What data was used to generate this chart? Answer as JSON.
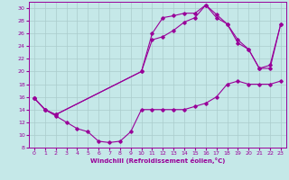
{
  "xlabel": "Windchill (Refroidissement éolien,°C)",
  "bg_color": "#c5e8e8",
  "line_color": "#990099",
  "grid_color": "#aacccc",
  "xlim": [
    -0.5,
    23.5
  ],
  "ylim": [
    8,
    31
  ],
  "yticks": [
    8,
    10,
    12,
    14,
    16,
    18,
    20,
    22,
    24,
    26,
    28,
    30
  ],
  "xticks": [
    0,
    1,
    2,
    3,
    4,
    5,
    6,
    7,
    8,
    9,
    10,
    11,
    12,
    13,
    14,
    15,
    16,
    17,
    18,
    19,
    20,
    21,
    22,
    23
  ],
  "line1": [
    [
      0,
      15.8
    ],
    [
      1,
      14.0
    ],
    [
      2,
      13.0
    ],
    [
      3,
      12.0
    ],
    [
      4,
      11.0
    ],
    [
      5,
      10.5
    ],
    [
      6,
      9.0
    ],
    [
      7,
      8.8
    ],
    [
      8,
      9.0
    ],
    [
      9,
      10.5
    ],
    [
      10,
      14.0
    ],
    [
      11,
      14.0
    ],
    [
      12,
      14.0
    ],
    [
      13,
      14.0
    ],
    [
      14,
      14.0
    ],
    [
      15,
      14.5
    ],
    [
      16,
      15.0
    ],
    [
      17,
      16.0
    ],
    [
      18,
      18.0
    ],
    [
      19,
      18.5
    ],
    [
      20,
      18.0
    ],
    [
      21,
      18.0
    ],
    [
      22,
      18.0
    ],
    [
      23,
      18.5
    ]
  ],
  "line2": [
    [
      0,
      15.8
    ],
    [
      1,
      14.0
    ],
    [
      2,
      13.2
    ],
    [
      10,
      20.0
    ],
    [
      11,
      26.0
    ],
    [
      12,
      28.5
    ],
    [
      13,
      28.8
    ],
    [
      14,
      29.2
    ],
    [
      15,
      29.2
    ],
    [
      16,
      30.5
    ],
    [
      17,
      29.0
    ],
    [
      18,
      27.5
    ],
    [
      19,
      25.0
    ],
    [
      20,
      23.5
    ],
    [
      21,
      20.5
    ],
    [
      22,
      20.5
    ],
    [
      23,
      27.5
    ]
  ],
  "line3": [
    [
      0,
      15.8
    ],
    [
      1,
      14.0
    ],
    [
      2,
      13.2
    ],
    [
      10,
      20.0
    ],
    [
      11,
      25.0
    ],
    [
      12,
      25.5
    ],
    [
      13,
      26.5
    ],
    [
      14,
      27.8
    ],
    [
      15,
      28.5
    ],
    [
      16,
      30.5
    ],
    [
      17,
      28.5
    ],
    [
      18,
      27.5
    ],
    [
      19,
      24.5
    ],
    [
      20,
      23.5
    ],
    [
      21,
      20.5
    ],
    [
      22,
      21.0
    ],
    [
      23,
      27.5
    ]
  ]
}
